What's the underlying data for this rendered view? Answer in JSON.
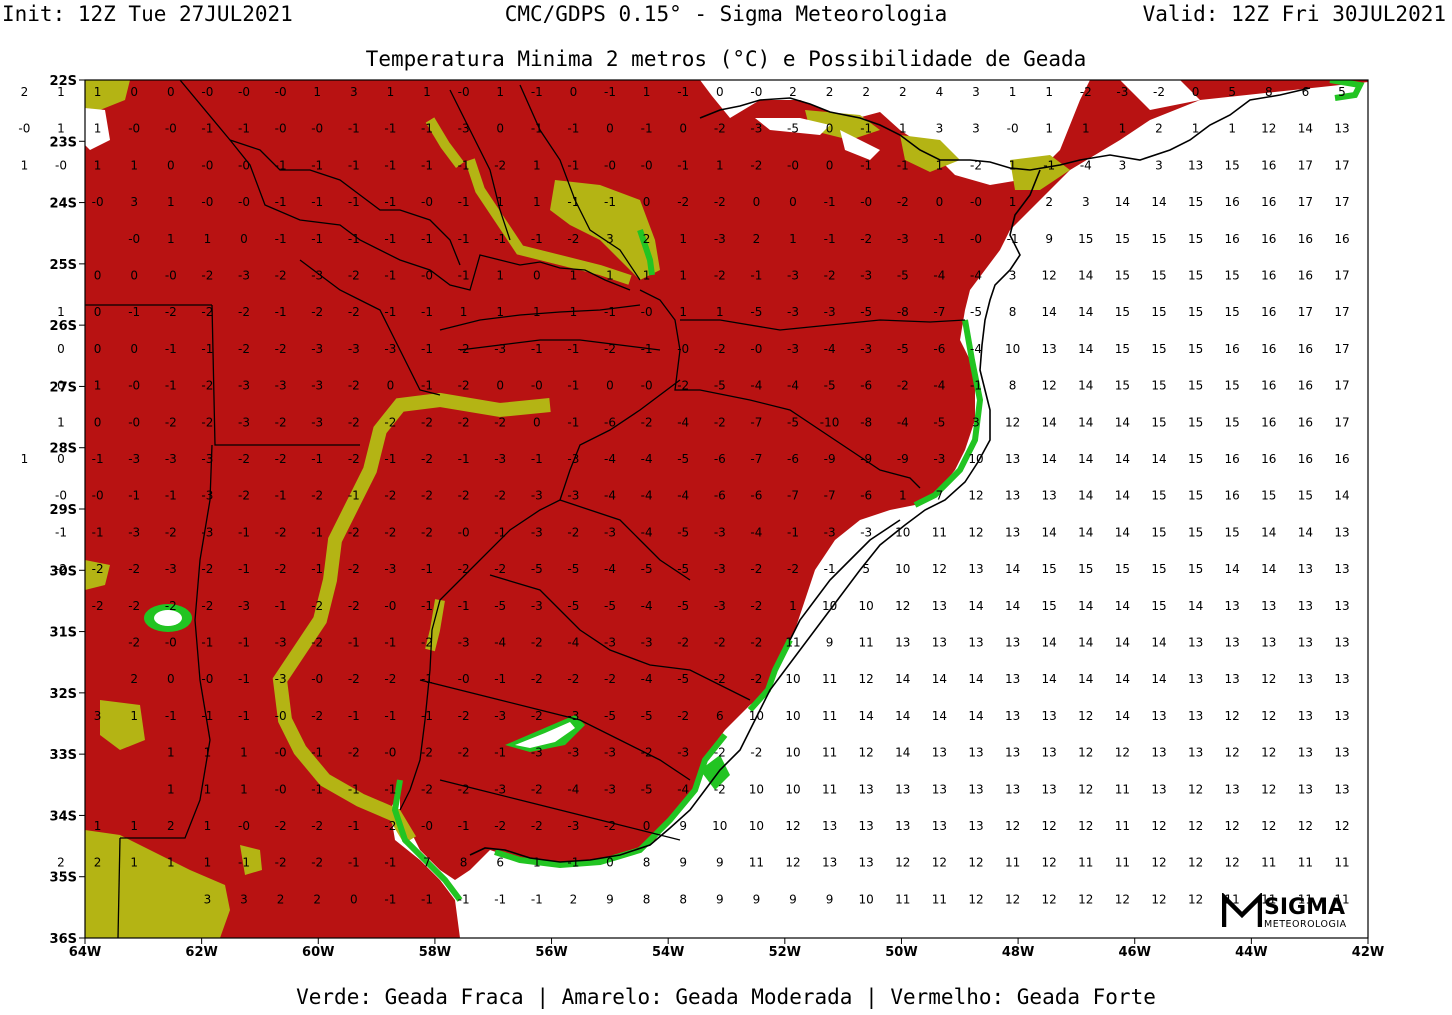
{
  "header": {
    "init": "Init: 12Z Tue 27JUL2021",
    "model": "CMC/GDPS 0.15° - Sigma Meteorologia",
    "valid": "Valid: 12Z Fri 30JUL2021"
  },
  "map": {
    "title": "Temperatura Minima 2 metros (°C) e Possibilidade de Geada",
    "lat_labels": [
      "22S",
      "23S",
      "24S",
      "25S",
      "26S",
      "27S",
      "28S",
      "29S",
      "30S",
      "31S",
      "32S",
      "33S",
      "34S",
      "35S",
      "36S"
    ],
    "lon_labels": [
      "64W",
      "62W",
      "60W",
      "58W",
      "56W",
      "54W",
      "52W",
      "50W",
      "48W",
      "46W",
      "44W",
      "42W"
    ],
    "colors": {
      "frost_strong": "#b81212",
      "frost_moderate": "#b4b414",
      "frost_weak": "#22c422",
      "no_frost": "#ffffff",
      "border": "#000000"
    },
    "legend_caption": "Verde: Geada Fraca | Amarelo: Geada Moderada | Vermelho: Geada Forte",
    "rows": [
      "4 2 1 1 0 0 -0 -0 -0 1 3 1 1 -0 1 -1 0 -1 1 -1 0 -0 2 2 2 2 4 3 1 1 -2 -3 -2 0 5 8 6 5",
      "1 -0 1 1 -0 -0 -1 -1 -0 -0 -1 -1 -1 -3 0 -1 -1 0 -1 0 -2 -3 -5 0 -1 1 3 3 -0 1 1 1 2 1 1 12 14 13",
      "1 -0 1 1 0 -0 -0 -1 -1 -1 -1 -1 -1 -2 1 -1 -0 -0 -1 1 -2 -0 0 -1 -1 1 -2 1 -1 -4 3 3 13 15 16 17 17",
      "-0 3 1 -0 -0 -1 -1 -1 -1 -0 -1 1 1 -1 -1 0 -2 -2 0 0 -1 -0 -2 0 -0 1 2 3 14 14 15 16 16 17 17",
      "-0 1 1 0 -1 -1 -1 -1 -1 -1 -1 -1 -2 3 2 1 -3 2 1 -1 -2 -3 -1 -0 -1 9 15 15 15 15 16 16 16 16",
      "0 0 -0 -2 -3 -2 -3 -2 -1 -0 -1 1 0 1 1 1 1 -2 -1 -3 -2 -3 -5 -4 -4 3 12 14 15 15 15 15 16 16 17",
      "1 0 -1 -2 -2 -2 -1 -2 -2 -1 -1 1 1 1 1 -1 -0 1 1 -5 -3 -3 -5 -8 -7 -5 8 14 14 15 15 15 15 16 17 17",
      "0 0 0 -1 -1 -2 -2 -3 -3 -3 -1 -2 -3 -1 -1 -2 -1 -0 -2 -0 -3 -4 -3 -5 -6 -4 10 13 14 15 15 15 16 16 16 17",
      "0 1 -0 -1 -2 -3 -3 -3 -2 0 -1 -2 0 -0 -1 0 -0 -2 -5 -4 -4 -5 -6 -2 -4 -1 8 12 14 15 15 15 15 16 16 17",
      "1 0 -0 -2 -2 -3 -2 -3 -2 -2 -2 -2 -2 0 -1 -6 -2 -4 -2 -7 -5 -10 -8 -4 -5 3 12 14 14 14 15 15 15 16 16 17",
      "1 0 -1 -3 -3 -3 -2 -2 -1 -2 -1 -2 -1 -3 -1 -3 -4 -4 -5 -6 -7 -6 -9 -9 -9 -3 10 13 14 14 14 14 15 16 16 16 16",
      "-0 -0 -1 -1 -3 -2 -1 -2 -1 -2 -2 -2 -2 -3 -3 -4 -4 -4 -6 -6 -7 -7 -6 1 7 12 13 13 14 14 15 15 16 15 15 14",
      "-1 -1 -3 -2 -3 -1 -2 -1 -2 -2 -2 -0 -1 -3 -2 -3 -4 -5 -3 -4 -1 -3 -3 10 11 12 13 14 14 14 15 15 15 14 14 13",
      "-2 -2 -2 -3 -2 -1 -2 -1 -2 -3 -1 -2 -2 -5 -5 -4 -5 -5 -3 -2 -2 -1 5 10 12 13 14 15 15 15 15 15 14 14 13 13",
      "-2 -2 -2 -2 -3 -1 -2 -2 -0 -1 -1 -5 -3 -5 -5 -4 -5 -3 -2 1 10 10 12 13 14 14 15 14 14 15 14 13 13 13 13",
      "-2 -0 -1 -1 -3 -2 -1 -1 -2 -3 -4 -2 -4 -3 -3 -2 -2 -2 11 9 11 13 13 13 13 14 14 14 14 13 13 13 13 13",
      "2 0 -0 -1 -3 -0 -2 -2 -1 -0 -1 -2 -2 -2 -4 -5 -2 -2 10 11 12 14 14 14 13 14 14 14 14 13 13 12 13 13",
      "3 1 -1 -1 -1 -0 -2 -1 -1 -1 -2 -3 -2 -3 -5 -5 -2 6 10 10 11 14 14 14 14 13 13 12 14 13 13 12 12 13 13",
      "1 1 1 -0 -1 -2 -0 -2 -2 -1 -3 -3 -3 -2 -3 -2 -2 10 11 12 14 13 13 13 13 12 12 13 13 12 12 13 13",
      "1 1 1 -0 -1 -1 -1 -2 -2 -3 -2 -4 -3 -5 -4 -2 10 10 11 13 13 13 13 13 13 12 11 13 12 13 12 13 13",
      "1 1 2 1 -0 -2 -2 -1 -2 -0 -1 -2 -2 -3 -2 0 9 10 10 12 13 13 13 13 13 12 12 12 11 12 12 12 12 12 12",
      "2 2 1 1 1 -1 -2 -2 -1 -1 7 8 6 1 -1 0 8 9 9 11 12 13 13 12 12 12 11 12 11 11 12 12 12 11 11 11",
      "3 3 2 2 0 -1 -1 -1 -1 -1 2 9 8 8 9 9 9 9 10 11 11 12 12 12 12 12 12 12 11 11 11 11"
    ]
  },
  "logo": {
    "name": "SIGMA",
    "sub": "METEOROLOGIA"
  }
}
